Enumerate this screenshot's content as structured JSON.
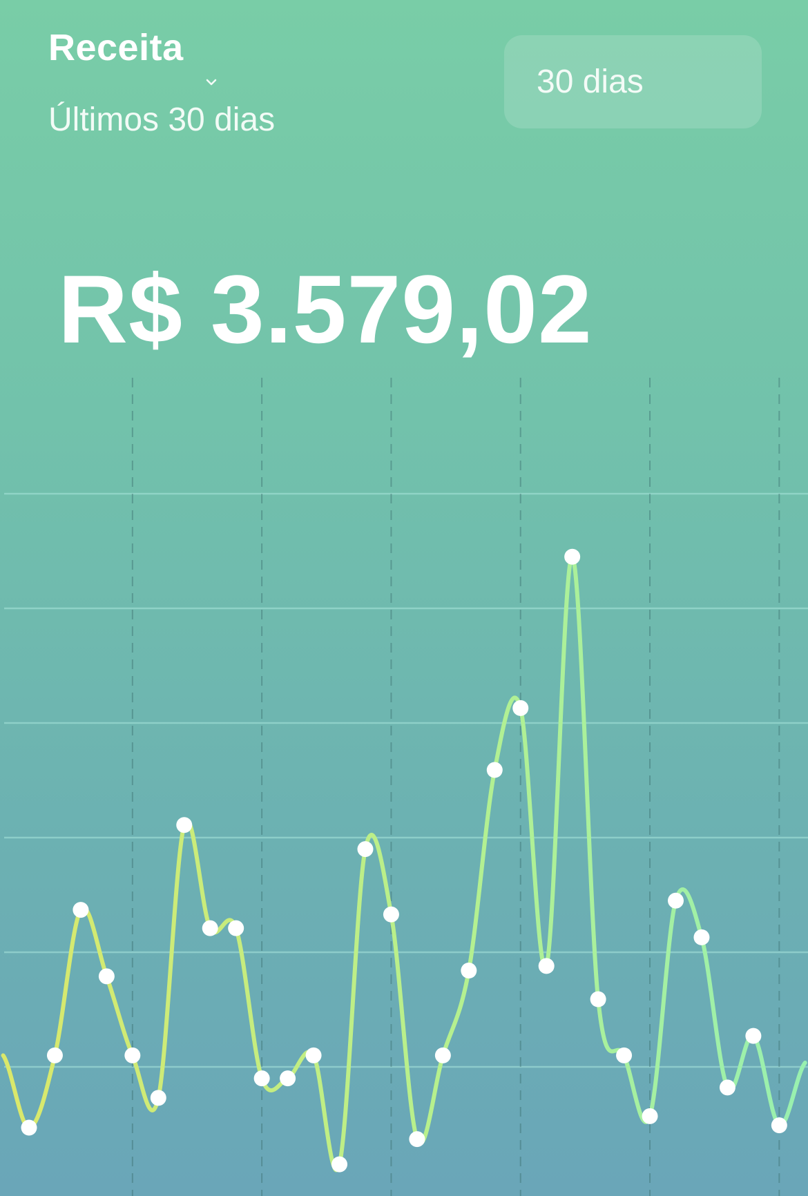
{
  "header": {
    "title": "Receita",
    "subtitle": "Últimos 30 dias",
    "period_select": {
      "selected": "30 dias",
      "icon": "chevron-down-icon"
    }
  },
  "total": "R$ 3.579,02",
  "colors": {
    "background_top": "#79cda7",
    "background_bottom": "#6aa6b8",
    "line_start": "#dbe86a",
    "line_mid": "#b6f08e",
    "line_end": "#98f0b0",
    "point": "#ffffff"
  },
  "chart_data": {
    "type": "line",
    "smooth": true,
    "markers": true,
    "grid": {
      "horizontal": true,
      "vertical": "dashed, every 5 points"
    },
    "axis_labels_shown": false,
    "x": [
      1,
      2,
      3,
      4,
      5,
      6,
      7,
      8,
      9,
      10,
      11,
      12,
      13,
      14,
      15,
      16,
      17,
      18,
      19,
      20,
      21,
      22,
      23,
      24,
      25,
      26,
      27,
      28,
      29,
      30
    ],
    "values": [
      0.47,
      1.1,
      2.37,
      1.79,
      1.1,
      0.73,
      3.11,
      2.21,
      2.21,
      0.9,
      0.9,
      1.1,
      0.15,
      2.9,
      2.33,
      0.37,
      1.1,
      1.84,
      3.59,
      4.13,
      1.88,
      5.45,
      1.59,
      1.1,
      0.57,
      2.45,
      2.13,
      0.82,
      1.27,
      0.49
    ],
    "ylim": [
      0,
      6
    ]
  }
}
